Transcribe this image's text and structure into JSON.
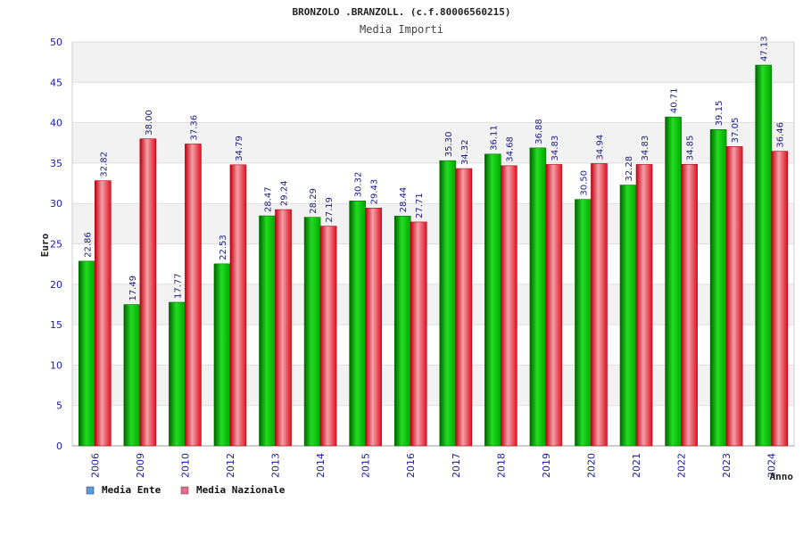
{
  "chart_data": {
    "type": "bar",
    "title": "BRONZOLO .BRANZOLL. (c.f.80006560215)",
    "subtitle": "Media Importi",
    "ylabel": "Euro",
    "xlabel": "Anno",
    "ylim": [
      0,
      50
    ],
    "yticks": [
      0,
      5,
      10,
      15,
      20,
      25,
      30,
      35,
      40,
      45,
      50
    ],
    "grid": true,
    "legend_position": "bottom-left",
    "categories": [
      "2006",
      "2009",
      "2010",
      "2012",
      "2013",
      "2014",
      "2015",
      "2016",
      "2017",
      "2018",
      "2019",
      "2020",
      "2021",
      "2022",
      "2023",
      "2024"
    ],
    "series": [
      {
        "name": "Media Ente",
        "color": "#00c000",
        "legend_color": "#5b9bd5",
        "values": [
          22.86,
          17.49,
          17.77,
          22.53,
          28.47,
          28.29,
          30.32,
          28.44,
          35.3,
          36.11,
          36.88,
          30.5,
          32.28,
          40.71,
          39.15,
          47.13
        ],
        "labels": [
          "22.86",
          "17.49",
          "17.77",
          "22.53",
          "28.47",
          "28.29",
          "30.32",
          "28.44",
          "35.30",
          "36.11",
          "36.88",
          "30.50",
          "32.28",
          "40.71",
          "39.15",
          "47.13"
        ]
      },
      {
        "name": "Media Nazionale",
        "color": "#e8202a",
        "legend_color": "#e07090",
        "values": [
          32.82,
          38.0,
          37.36,
          34.79,
          29.24,
          27.19,
          29.43,
          27.71,
          34.32,
          34.68,
          34.83,
          34.94,
          34.83,
          34.85,
          37.05,
          36.46
        ],
        "labels": [
          "32.82",
          "38.00",
          "37.36",
          "34.79",
          "29.24",
          "27.19",
          "29.43",
          "27.71",
          "34.32",
          "34.68",
          "34.83",
          "34.94",
          "34.83",
          "34.85",
          "37.05",
          "36.46"
        ]
      }
    ]
  }
}
